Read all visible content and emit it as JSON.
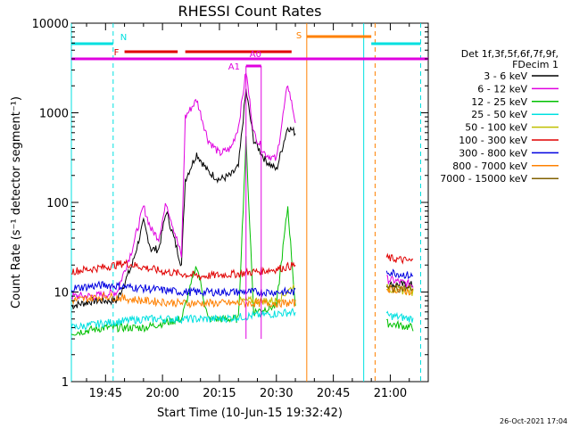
{
  "chart_data": {
    "type": "line",
    "title": "RHESSI Count Rates",
    "xlabel": "Start Time (10-Jun-15 19:32:42)",
    "ylabel": "Count Rate (s⁻¹ detector segment⁻¹)",
    "y_scale": "log",
    "ylim": [
      1,
      10000
    ],
    "xlim": [
      "19:36",
      "21:10"
    ],
    "x_ticks": [
      "19:45",
      "20:00",
      "20:15",
      "20:30",
      "20:45",
      "21:00"
    ],
    "y_ticks": [
      "1",
      "10",
      "100",
      "1000",
      "10000"
    ],
    "timestamp": "26-Oct-2021 17:04",
    "legend": {
      "header": [
        "Det 1f,3f,5f,6f,7f,9f,",
        "FDecim 1"
      ],
      "placement": "right",
      "entries": [
        {
          "label": "3 - 6 keV",
          "color": "#000000"
        },
        {
          "label": "6 - 12 keV",
          "color": "#e000e0"
        },
        {
          "label": "12 - 25 keV",
          "color": "#00c000"
        },
        {
          "label": "25 - 50 keV",
          "color": "#00e0e0"
        },
        {
          "label": "50 - 100 keV",
          "color": "#c0c000"
        },
        {
          "label": "100 - 300 keV",
          "color": "#e00000"
        },
        {
          "label": "300 - 800 keV",
          "color": "#0000e0"
        },
        {
          "label": "800 - 7000 keV",
          "color": "#ff8000"
        },
        {
          "label": "7000 - 15000 keV",
          "color": "#806000"
        }
      ]
    },
    "flag_bars": [
      {
        "label": "N",
        "color": "#00e0e0",
        "segments": [
          [
            "19:36",
            "19:47"
          ],
          [
            "20:55",
            "21:08"
          ]
        ]
      },
      {
        "label": "F",
        "color": "#e00000",
        "segments": [
          [
            "19:50",
            "20:04"
          ],
          [
            "20:06",
            "20:34"
          ]
        ]
      },
      {
        "label": "S",
        "color": "#ff8000",
        "segments": [
          [
            "20:38",
            "20:55"
          ]
        ]
      },
      {
        "label": "A0",
        "color": "#e000e0",
        "segments": [
          [
            "19:36",
            "21:10"
          ]
        ]
      },
      {
        "label": "A1",
        "color": "#e000e0",
        "segments": [
          [
            "20:22",
            "20:26"
          ]
        ]
      }
    ],
    "vertical_markers": [
      {
        "time": "19:36",
        "color": "#00e0e0",
        "style": "solid"
      },
      {
        "time": "19:47",
        "color": "#00e0e0",
        "style": "dashed"
      },
      {
        "time": "20:38",
        "color": "#ff8000",
        "style": "solid"
      },
      {
        "time": "20:53",
        "color": "#00e0e0",
        "style": "solid"
      },
      {
        "time": "20:56",
        "color": "#ff8000",
        "style": "dashed"
      },
      {
        "time": "21:08",
        "color": "#00e0e0",
        "style": "dashed"
      }
    ],
    "series": [
      {
        "name": "3 - 6 keV",
        "color": "#000000",
        "x": [
          "19:36",
          "19:42",
          "19:48",
          "19:52",
          "19:55",
          "19:57",
          "19:59",
          "20:01",
          "20:03",
          "20:05",
          "20:06",
          "20:09",
          "20:12",
          "20:15",
          "20:18",
          "20:20",
          "20:22",
          "20:24",
          "20:27",
          "20:30",
          "20:33",
          "20:35",
          "20:59",
          "21:06"
        ],
        "y": [
          7,
          8,
          8,
          20,
          60,
          30,
          30,
          80,
          40,
          20,
          180,
          350,
          220,
          180,
          200,
          250,
          1800,
          500,
          300,
          230,
          700,
          600,
          12,
          12
        ]
      },
      {
        "name": "6 - 12 keV",
        "color": "#e000e0",
        "x": [
          "19:36",
          "19:42",
          "19:48",
          "19:52",
          "19:55",
          "19:57",
          "19:59",
          "20:01",
          "20:03",
          "20:05",
          "20:06",
          "20:09",
          "20:12",
          "20:15",
          "20:18",
          "20:20",
          "20:22",
          "20:24",
          "20:27",
          "20:30",
          "20:33",
          "20:35",
          "20:59",
          "21:06"
        ],
        "y": [
          9,
          9,
          10,
          30,
          90,
          50,
          40,
          100,
          50,
          25,
          900,
          1400,
          500,
          350,
          400,
          700,
          2900,
          600,
          350,
          300,
          2100,
          800,
          14,
          12
        ]
      },
      {
        "name": "12 - 25 keV",
        "color": "#00c000",
        "x": [
          "19:36",
          "19:45",
          "19:55",
          "20:05",
          "20:09",
          "20:12",
          "20:20",
          "20:22",
          "20:24",
          "20:30",
          "20:33",
          "20:35",
          "20:59",
          "21:06"
        ],
        "y": [
          3.5,
          4,
          4,
          5,
          20,
          5,
          5,
          500,
          6,
          7,
          90,
          7,
          4.5,
          4
        ]
      },
      {
        "name": "25 - 50 keV",
        "color": "#00e0e0",
        "x": [
          "19:36",
          "19:45",
          "19:55",
          "20:05",
          "20:15",
          "20:25",
          "20:35",
          "20:59",
          "21:06"
        ],
        "y": [
          4,
          4.5,
          5,
          5,
          5,
          5.5,
          6,
          5.5,
          5
        ]
      },
      {
        "name": "50 - 100 keV",
        "color": "#c0c000",
        "x": [
          "19:36",
          "20:00",
          "20:20",
          "20:30",
          "20:35",
          "20:59",
          "21:06"
        ],
        "y": [
          8,
          8,
          8,
          8,
          12,
          11,
          10
        ]
      },
      {
        "name": "100 - 300 keV",
        "color": "#e00000",
        "x": [
          "19:36",
          "19:45",
          "19:50",
          "20:00",
          "20:10",
          "20:20",
          "20:30",
          "20:35",
          "20:59",
          "21:06"
        ],
        "y": [
          17,
          19,
          21,
          17,
          15,
          16,
          18,
          20,
          24,
          22
        ]
      },
      {
        "name": "300 - 800 keV",
        "color": "#0000e0",
        "x": [
          "19:36",
          "19:45",
          "19:55",
          "20:05",
          "20:15",
          "20:25",
          "20:35",
          "20:59",
          "21:06"
        ],
        "y": [
          11,
          12,
          11,
          10,
          10,
          10,
          10,
          17,
          15
        ]
      },
      {
        "name": "800 - 7000 keV",
        "color": "#ff8000",
        "x": [
          "19:36",
          "19:45",
          "19:55",
          "20:05",
          "20:15",
          "20:25",
          "20:35",
          "20:59",
          "21:06"
        ],
        "y": [
          8,
          9,
          8,
          7.5,
          7.5,
          7.5,
          7.5,
          11,
          10
        ]
      },
      {
        "name": "7000 - 15000 keV",
        "color": "#806000",
        "x": [
          "19:36",
          "20:35",
          "20:59",
          "21:06"
        ],
        "y": [
          9,
          9,
          11,
          11
        ]
      }
    ]
  }
}
